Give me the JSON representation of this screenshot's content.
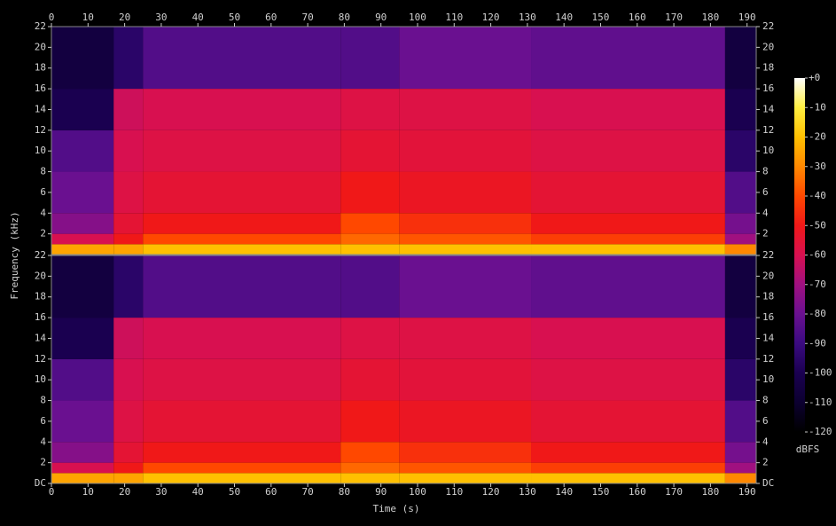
{
  "chart_data": {
    "type": "spectrogram",
    "xlabel": "Time (s)",
    "ylabel": "Frequency (kHz)",
    "colorbar_label": "dBFS",
    "xlim": [
      0,
      192.5
    ],
    "xticks": [
      0,
      10,
      20,
      30,
      40,
      50,
      60,
      70,
      80,
      90,
      100,
      110,
      120,
      130,
      140,
      150,
      160,
      170,
      180,
      190
    ],
    "zlim": [
      -120,
      0
    ],
    "zticks": [
      {
        "value": 0,
        "label": "+0"
      },
      -10,
      -20,
      -30,
      -40,
      -50,
      -60,
      -70,
      -80,
      -90,
      -100,
      -110,
      -120
    ],
    "colormap": [
      "#000000",
      "#0c0030",
      "#1a0050",
      "#3a0a80",
      "#6a1090",
      "#a01080",
      "#d81050",
      "#f01818",
      "#ff4800",
      "#ff8800",
      "#ffc000",
      "#ffef40",
      "#ffffff"
    ],
    "time_edges": [
      0,
      17,
      25,
      79,
      95,
      131,
      184,
      192.5
    ],
    "freq_edges": [
      0,
      1,
      2,
      4,
      8,
      12,
      16,
      22
    ],
    "channels": [
      {
        "ylim": [
          0,
          22
        ],
        "yticks": [
          2,
          4,
          6,
          8,
          10,
          12,
          14,
          16,
          18,
          20,
          22
        ],
        "values": [
          [
            -25,
            -60,
            -75,
            -80,
            -85,
            -100,
            -105
          ],
          [
            -25,
            -50,
            -55,
            -58,
            -60,
            -62,
            -95
          ],
          [
            -20,
            -40,
            -50,
            -55,
            -58,
            -60,
            -85
          ],
          [
            -20,
            -35,
            -40,
            -50,
            -55,
            -58,
            -85
          ],
          [
            -20,
            -38,
            -45,
            -52,
            -56,
            -58,
            -80
          ],
          [
            -20,
            -42,
            -50,
            -55,
            -58,
            -60,
            -82
          ],
          [
            -30,
            -70,
            -78,
            -85,
            -95,
            -100,
            -105
          ]
        ]
      },
      {
        "ylim": [
          0,
          22
        ],
        "yticks": [
          {
            "value": 0,
            "label": "DC"
          },
          2,
          4,
          6,
          8,
          10,
          12,
          14,
          16,
          18,
          20,
          22
        ],
        "values": [
          [
            -25,
            -60,
            -75,
            -80,
            -85,
            -100,
            -105
          ],
          [
            -25,
            -50,
            -55,
            -58,
            -60,
            -62,
            -95
          ],
          [
            -20,
            -40,
            -50,
            -55,
            -58,
            -60,
            -85
          ],
          [
            -20,
            -35,
            -40,
            -50,
            -55,
            -58,
            -85
          ],
          [
            -20,
            -38,
            -45,
            -52,
            -56,
            -58,
            -80
          ],
          [
            -20,
            -42,
            -50,
            -55,
            -58,
            -60,
            -82
          ],
          [
            -30,
            -70,
            -78,
            -85,
            -95,
            -100,
            -105
          ]
        ]
      }
    ]
  }
}
